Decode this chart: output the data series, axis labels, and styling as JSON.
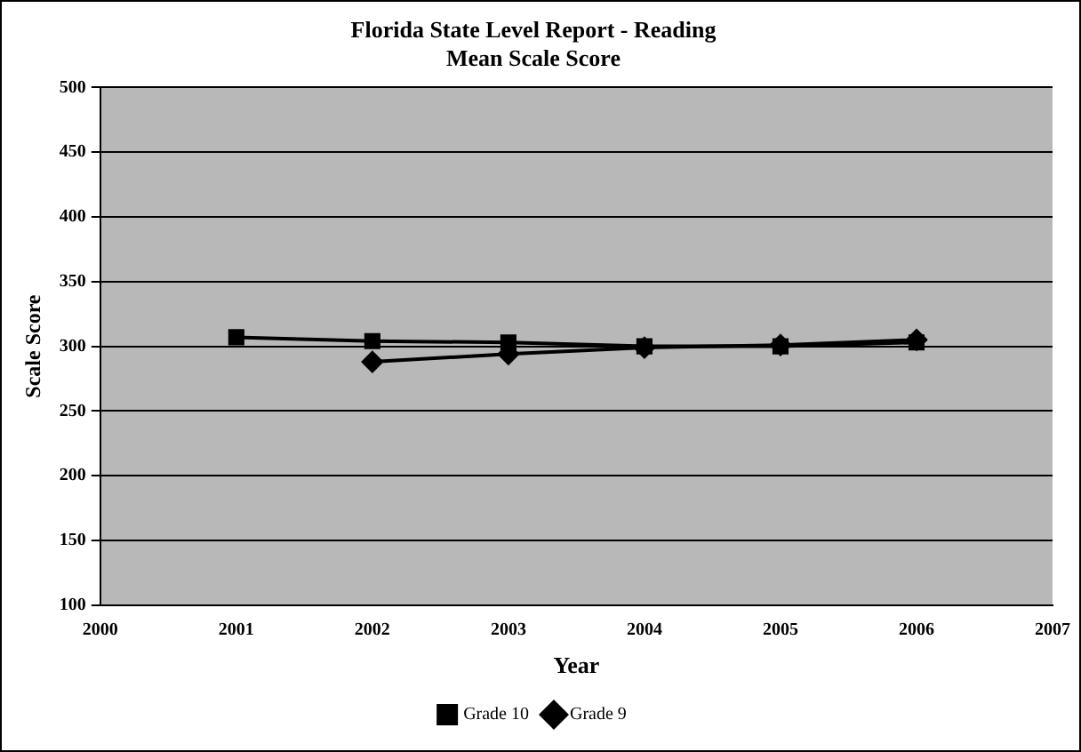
{
  "chart_data": {
    "type": "line",
    "title": [
      "Florida State Level Report - Reading",
      "Mean Scale Score"
    ],
    "xlabel": "Year",
    "ylabel": "Scale Score",
    "x": [
      2001,
      2002,
      2003,
      2004,
      2005,
      2006
    ],
    "series": [
      {
        "name": "Grade 9",
        "color": "#000000",
        "marker": "diamond",
        "values": [
          null,
          288,
          294,
          299,
          301,
          305
        ]
      },
      {
        "name": "Grade 10",
        "color": "#000000",
        "marker": "square",
        "values": [
          307,
          304,
          303,
          300,
          300,
          303
        ]
      }
    ],
    "xlim": [
      2000,
      2007
    ],
    "xticks": [
      2000,
      2001,
      2002,
      2003,
      2004,
      2005,
      2006,
      2007
    ],
    "ylim": [
      100,
      500
    ],
    "yticks": [
      100,
      150,
      200,
      250,
      300,
      350,
      400,
      450,
      500
    ],
    "grid": "y",
    "legend": "bottom"
  }
}
